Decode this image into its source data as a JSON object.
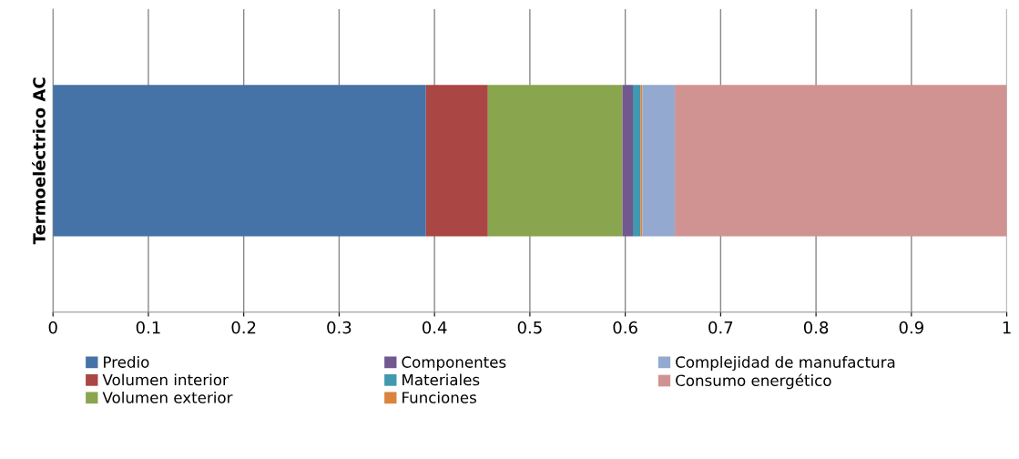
{
  "chart_data": {
    "type": "bar",
    "orientation": "horizontal",
    "stacked": true,
    "categories": [
      "Termoeléctrico AC"
    ],
    "series": [
      {
        "name": "Predio",
        "color": "#4572a7",
        "values": [
          0.391
        ]
      },
      {
        "name": "Volumen interior",
        "color": "#aa4643",
        "values": [
          0.065
        ]
      },
      {
        "name": "Volumen exterior",
        "color": "#89a54e",
        "values": [
          0.141
        ]
      },
      {
        "name": "Componentes",
        "color": "#71588f",
        "values": [
          0.011
        ]
      },
      {
        "name": "Materiales",
        "color": "#4198af",
        "values": [
          0.008
        ]
      },
      {
        "name": "Funciones",
        "color": "#db843d",
        "values": [
          0.002
        ]
      },
      {
        "name": "Complejidad de manufactura",
        "color": "#93a9cf",
        "values": [
          0.034
        ]
      },
      {
        "name": "Consumo energético",
        "color": "#d19392",
        "values": [
          0.348
        ]
      }
    ],
    "xlim": [
      0,
      1
    ],
    "xticks": [
      0,
      0.1,
      0.2,
      0.3,
      0.4,
      0.5,
      0.6,
      0.7,
      0.8,
      0.9,
      1
    ],
    "grid": "x",
    "legend": "bottom"
  }
}
